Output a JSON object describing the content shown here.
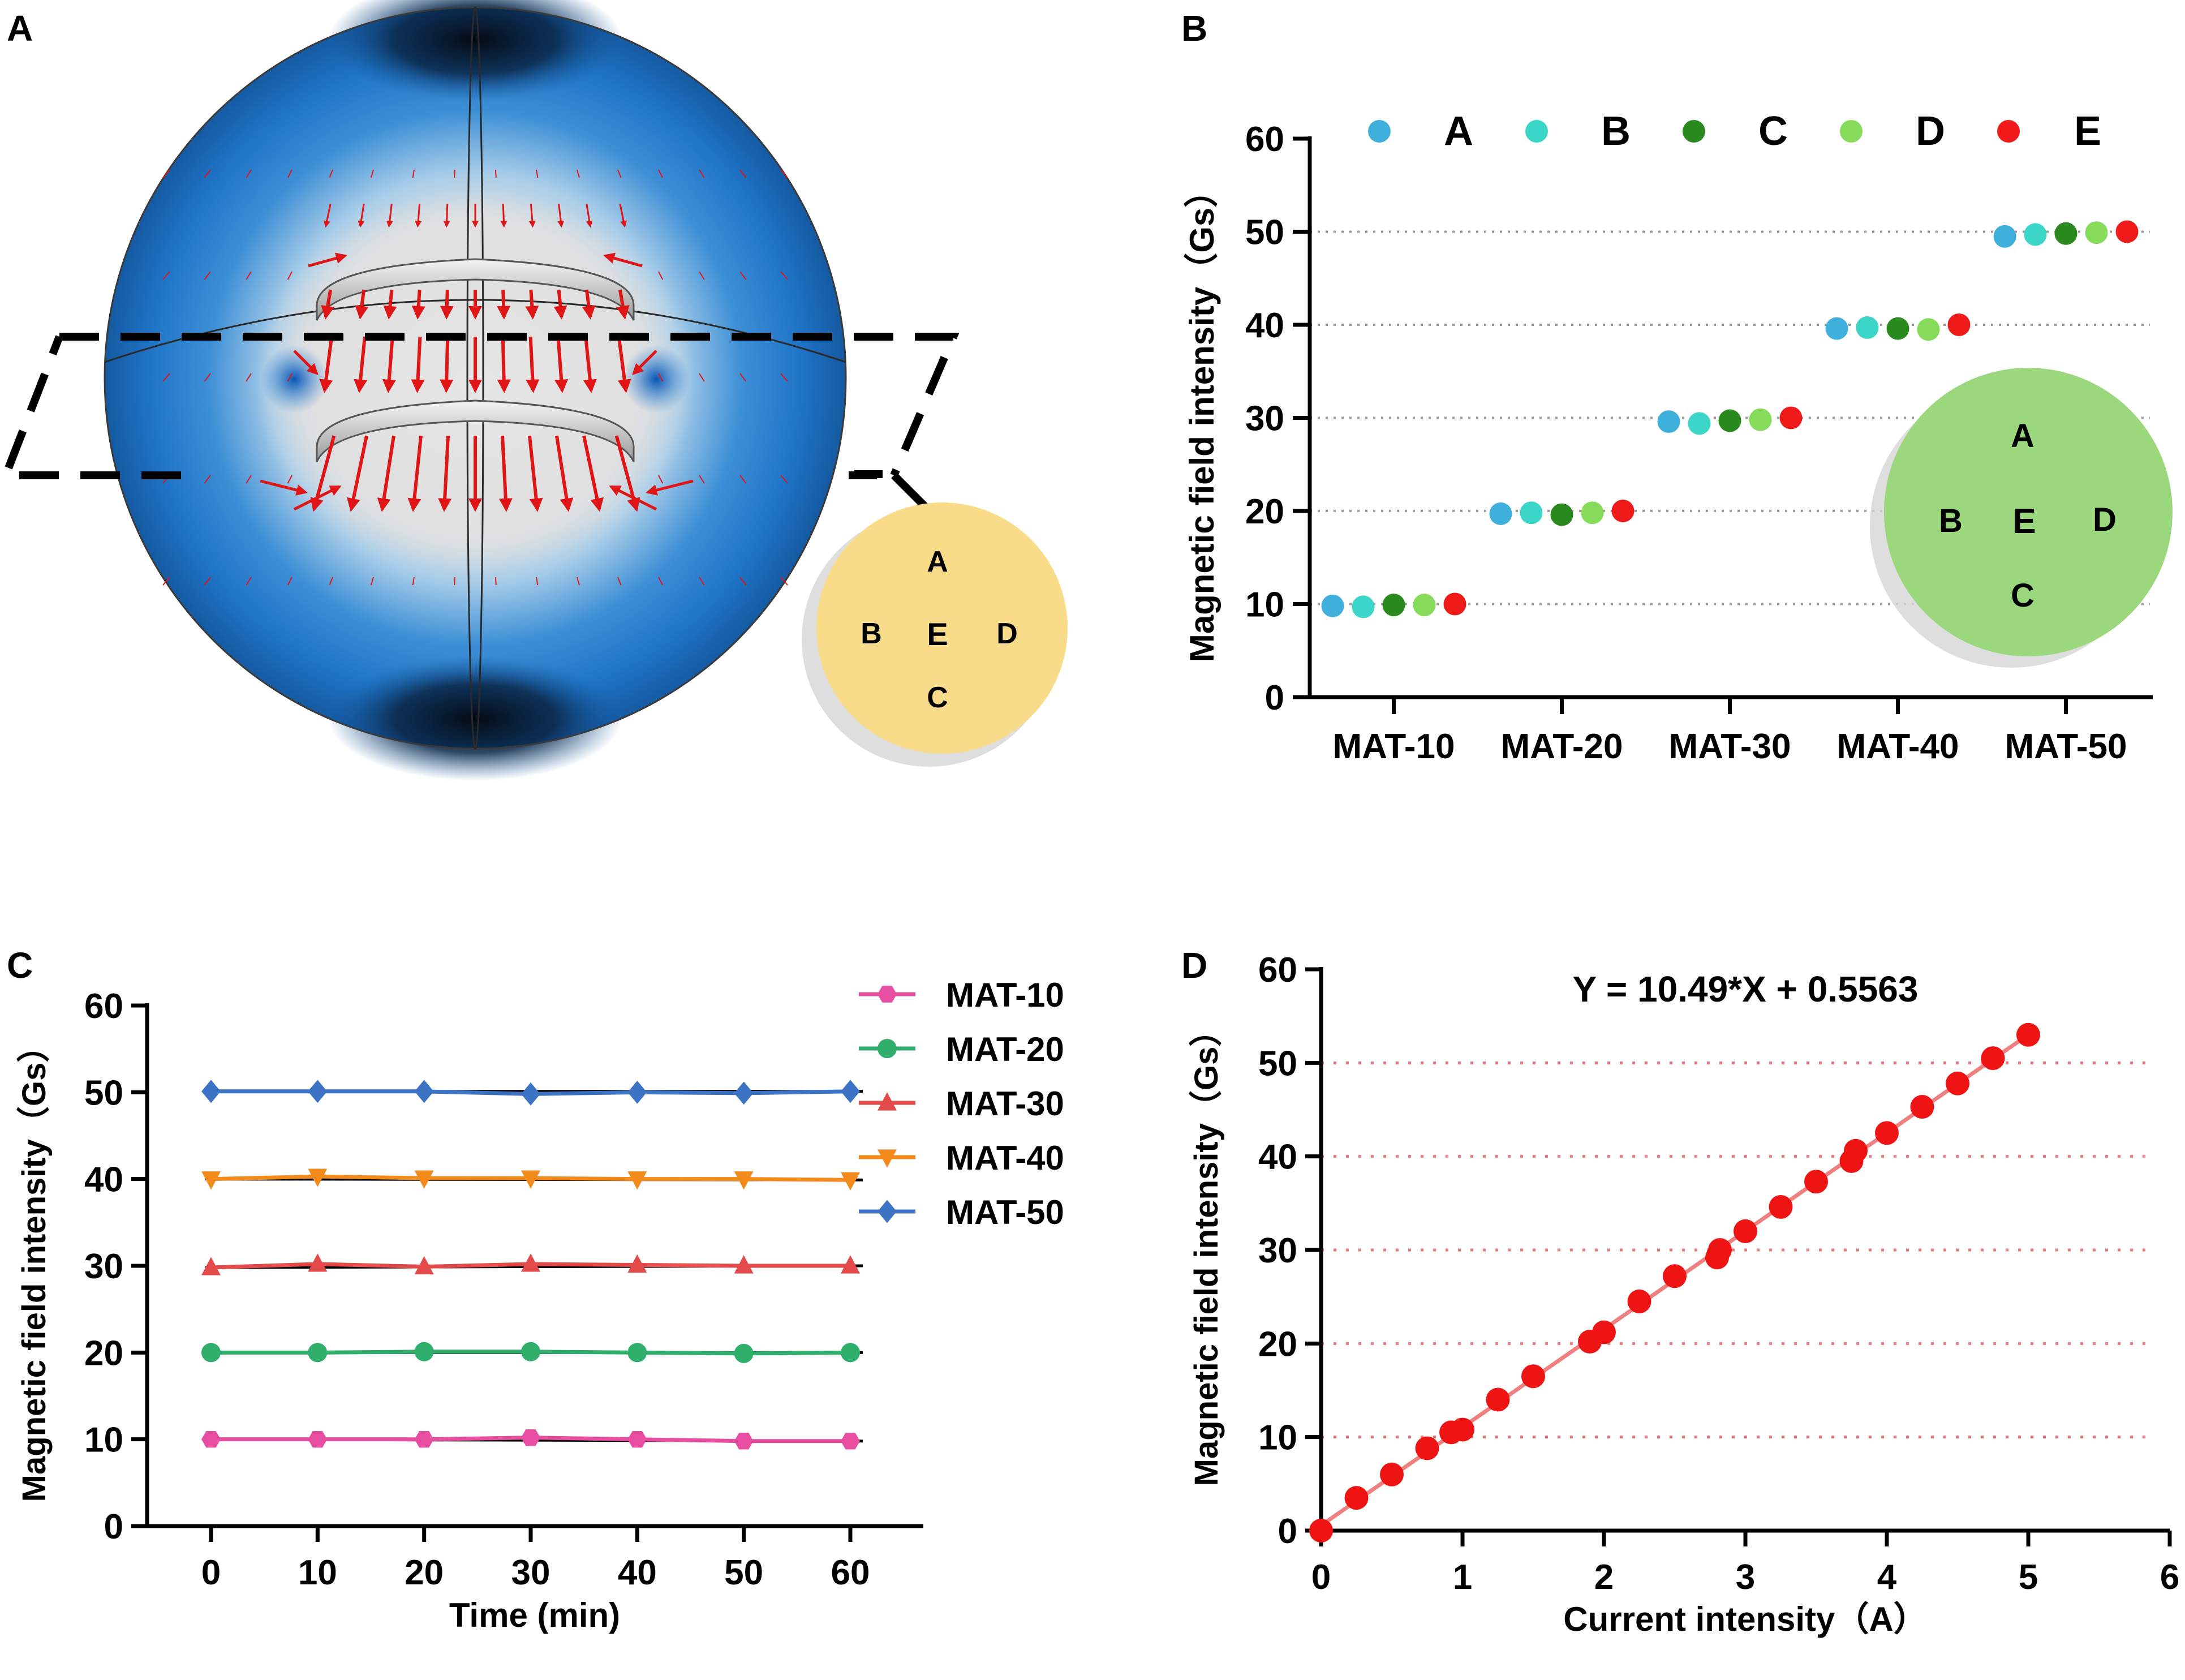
{
  "panels": {
    "a": {
      "letter": "A",
      "legend_circle": {
        "top": "A",
        "left": "B",
        "center": "E",
        "right": "D",
        "bottom": "C",
        "color": "#f8dc8a"
      }
    },
    "b": {
      "letter": "B"
    },
    "c": {
      "letter": "C"
    },
    "d": {
      "letter": "D"
    }
  },
  "chart_data": [
    {
      "panel": "B",
      "type": "scatter",
      "ylabel": "Magnetic field intensity（Gs）",
      "xlabel": "",
      "ylim": [
        0,
        60
      ],
      "yticks": [
        0,
        10,
        20,
        30,
        40,
        50,
        60
      ],
      "grid": "horizontal dotted at 10, 20, 30, 40, 50",
      "categories": [
        "MAT-10",
        "MAT-20",
        "MAT-30",
        "MAT-40",
        "MAT-50"
      ],
      "legend": "top",
      "series": [
        {
          "name": "A",
          "color": "#3fb0dc",
          "values": [
            9.8,
            19.7,
            29.6,
            39.6,
            49.5
          ]
        },
        {
          "name": "B",
          "color": "#3cd6c8",
          "values": [
            9.7,
            19.8,
            29.4,
            39.7,
            49.7
          ]
        },
        {
          "name": "C",
          "color": "#2b8a1e",
          "values": [
            9.9,
            19.6,
            29.7,
            39.6,
            49.8
          ]
        },
        {
          "name": "D",
          "color": "#86dc5a",
          "values": [
            9.9,
            19.8,
            29.8,
            39.5,
            49.9
          ]
        },
        {
          "name": "E",
          "color": "#ef1a1a",
          "values": [
            10.0,
            20.0,
            30.0,
            40.0,
            50.0
          ]
        }
      ],
      "inset_circle": {
        "top": "A",
        "left": "B",
        "center": "E",
        "right": "D",
        "bottom": "C",
        "color": "#9bd77c"
      }
    },
    {
      "panel": "C",
      "type": "line",
      "xlabel": "Time (min)",
      "ylabel": "Magnetic field intensity（Gs）",
      "x": [
        0,
        10,
        20,
        30,
        40,
        50,
        60
      ],
      "xticks": [
        0,
        10,
        20,
        30,
        40,
        50,
        60
      ],
      "ylim": [
        0,
        60
      ],
      "yticks": [
        0,
        10,
        20,
        30,
        40,
        50,
        60
      ],
      "legend": "top-right",
      "series": [
        {
          "name": "MAT-10",
          "color": "#e74ea1",
          "marker": "hexagon",
          "values": [
            10.0,
            10.0,
            10.0,
            10.2,
            10.0,
            9.8,
            9.8
          ]
        },
        {
          "name": "MAT-20",
          "color": "#2fae6c",
          "marker": "circle",
          "values": [
            20.0,
            20.0,
            20.1,
            20.1,
            20.0,
            19.9,
            20.0
          ]
        },
        {
          "name": "MAT-30",
          "color": "#e34a4a",
          "marker": "triangle-up",
          "values": [
            29.8,
            30.2,
            29.9,
            30.2,
            30.1,
            30.0,
            30.0
          ]
        },
        {
          "name": "MAT-40",
          "color": "#f28b1c",
          "marker": "triangle-down",
          "values": [
            40.0,
            40.3,
            40.1,
            40.1,
            40.0,
            40.0,
            39.9
          ]
        },
        {
          "name": "MAT-50",
          "color": "#3c73c4",
          "marker": "diamond",
          "values": [
            50.1,
            50.1,
            50.1,
            49.8,
            50.0,
            49.9,
            50.1
          ]
        }
      ]
    },
    {
      "panel": "D",
      "type": "scatter",
      "title": "Y = 10.49*X + 0.5563",
      "xlabel": "Current intensity（A）",
      "ylabel": "Magnetic field intensity（Gs）",
      "xlim": [
        0,
        6
      ],
      "xticks": [
        0,
        1,
        2,
        3,
        4,
        5,
        6
      ],
      "ylim": [
        0,
        60
      ],
      "yticks": [
        0,
        10,
        20,
        30,
        40,
        50,
        60
      ],
      "grid": "horizontal dotted red at 10, 20, 30, 40, 50",
      "fit": {
        "slope": 10.49,
        "intercept": 0.5563,
        "xrange": [
          0,
          5
        ],
        "color": "#f08080"
      },
      "points_color": "#ef1414",
      "points": [
        [
          0,
          0
        ],
        [
          0.25,
          3.5
        ],
        [
          0.5,
          6.0
        ],
        [
          0.75,
          8.8
        ],
        [
          0.92,
          10.5
        ],
        [
          1.0,
          10.8
        ],
        [
          1.25,
          14.0
        ],
        [
          1.5,
          16.5
        ],
        [
          1.9,
          20.2
        ],
        [
          2.0,
          21.2
        ],
        [
          2.25,
          24.5
        ],
        [
          2.5,
          27.2
        ],
        [
          2.8,
          29.2
        ],
        [
          2.82,
          30.0
        ],
        [
          3.0,
          32.0
        ],
        [
          3.25,
          34.6
        ],
        [
          3.5,
          37.3
        ],
        [
          3.75,
          39.5
        ],
        [
          3.78,
          40.6
        ],
        [
          4.0,
          42.5
        ],
        [
          4.25,
          45.3
        ],
        [
          4.5,
          47.8
        ],
        [
          4.75,
          50.5
        ],
        [
          5.0,
          53.0
        ]
      ]
    }
  ]
}
